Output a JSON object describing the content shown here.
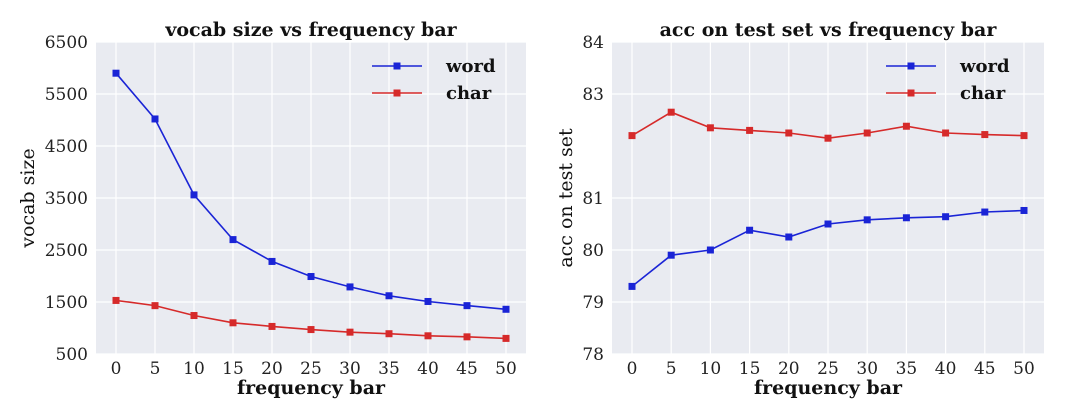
{
  "chart_data": [
    {
      "type": "line",
      "title": "vocab size vs frequency bar",
      "xlabel": "frequency bar",
      "ylabel": "vocab size",
      "x": [
        0,
        5,
        10,
        15,
        20,
        25,
        30,
        35,
        40,
        45,
        50
      ],
      "xticks": [
        "0",
        "5",
        "10",
        "15",
        "20",
        "25",
        "30",
        "35",
        "40",
        "45",
        "50"
      ],
      "ylim": [
        500,
        6500
      ],
      "yticks": [
        "500",
        "1500",
        "2500",
        "3500",
        "4500",
        "5500",
        "6500"
      ],
      "grid": true,
      "legend": "top-right",
      "series": [
        {
          "name": "word",
          "color": "#1a24d6",
          "values": [
            5900,
            5020,
            3560,
            2700,
            2280,
            1990,
            1790,
            1620,
            1510,
            1430,
            1360
          ]
        },
        {
          "name": "char",
          "color": "#d62a2a",
          "values": [
            1530,
            1430,
            1240,
            1100,
            1030,
            970,
            920,
            890,
            850,
            830,
            800
          ]
        }
      ]
    },
    {
      "type": "line",
      "title": "acc on test set vs frequency bar",
      "xlabel": "frequency bar",
      "ylabel": "acc on test set",
      "x": [
        0,
        5,
        10,
        15,
        20,
        25,
        30,
        35,
        40,
        45,
        50
      ],
      "xticks": [
        "0",
        "5",
        "10",
        "15",
        "20",
        "25",
        "30",
        "35",
        "40",
        "45",
        "50"
      ],
      "ylim": [
        78,
        84
      ],
      "yticks": [
        "78",
        "79",
        "80",
        "81",
        "83",
        "84"
      ],
      "yticks_values": [
        78,
        79,
        80,
        81,
        83,
        84
      ],
      "grid": true,
      "legend": "top-right",
      "series": [
        {
          "name": "word",
          "color": "#1a24d6",
          "values": [
            79.3,
            79.9,
            80.0,
            80.38,
            80.25,
            80.5,
            80.58,
            80.62,
            80.64,
            80.73,
            80.76
          ]
        },
        {
          "name": "char",
          "color": "#d62a2a",
          "values": [
            82.2,
            82.65,
            82.35,
            82.3,
            82.25,
            82.15,
            82.25,
            82.38,
            82.25,
            82.22,
            82.2
          ]
        }
      ]
    }
  ]
}
